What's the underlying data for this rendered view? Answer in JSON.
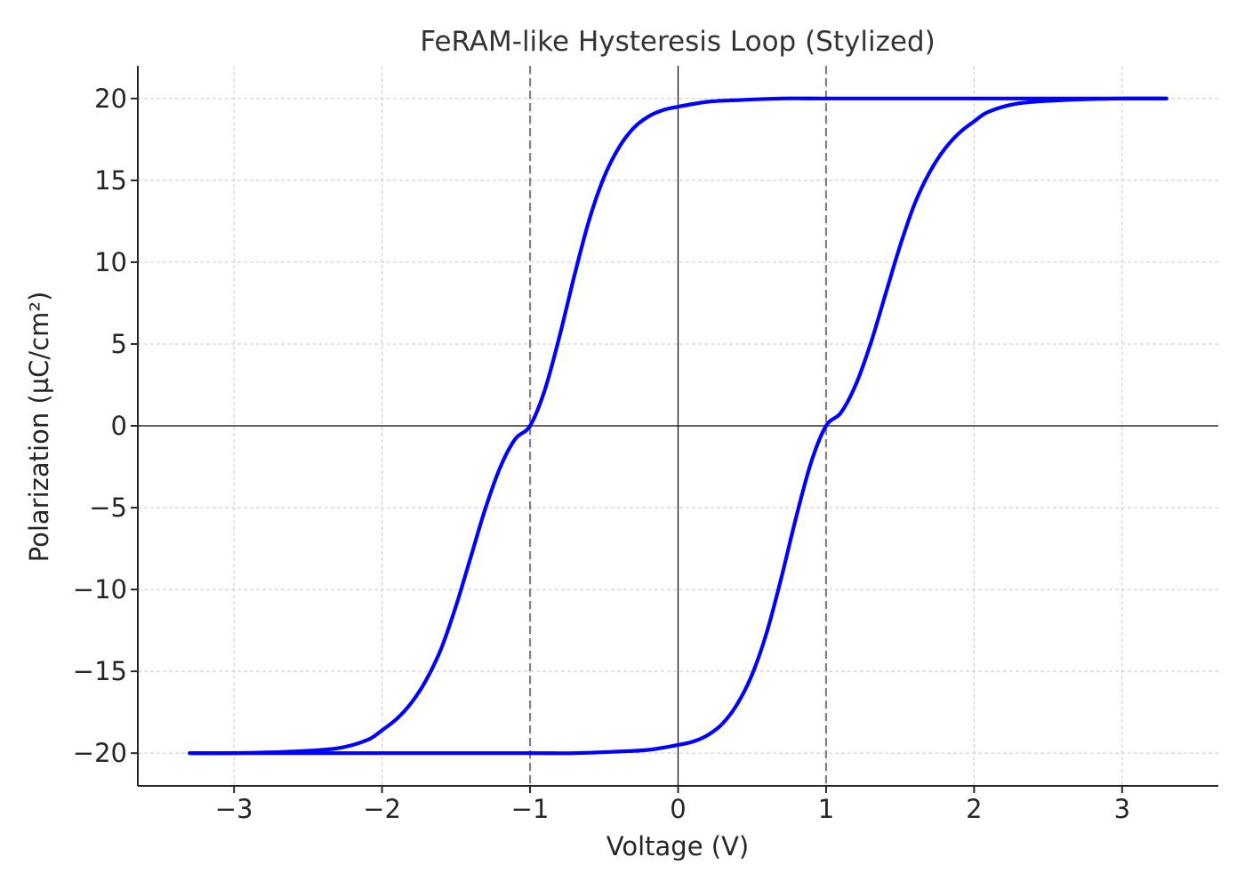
{
  "chart_data": {
    "type": "line",
    "title": "FeRAM-like Hysteresis Loop (Stylized)",
    "xlabel": "Voltage (V)",
    "ylabel": "Polarization (µC/cm²)",
    "xlim": [
      -3.65,
      3.65
    ],
    "ylim": [
      -22,
      22
    ],
    "xticks": [
      -3,
      -2,
      -1,
      0,
      1,
      2,
      3
    ],
    "yticks": [
      -20,
      -15,
      -10,
      -5,
      0,
      5,
      10,
      15,
      20
    ],
    "xtick_labels": [
      "−3",
      "−2",
      "−1",
      "0",
      "1",
      "2",
      "3"
    ],
    "ytick_labels": [
      "−20",
      "−15",
      "−10",
      "−5",
      "0",
      "5",
      "10",
      "15",
      "20"
    ],
    "grid": true,
    "coercive_voltage_lines": [
      -1,
      1
    ],
    "series": [
      {
        "color": "#0000ff",
        "x": [
          3.3,
          3.0,
          2.6,
          2.3,
          2.1,
          2.0,
          1.9,
          1.8,
          1.7,
          1.6,
          1.5,
          1.4,
          1.3,
          1.2,
          1.1,
          1.0,
          0.9,
          0.8,
          0.7,
          0.6,
          0.5,
          0.4,
          0.3,
          0.2,
          0.1,
          0.0,
          -0.2,
          -0.4,
          -0.7,
          -1.0,
          -1.5,
          -2.0,
          -2.5,
          -3.0,
          -3.3
        ],
        "y": [
          20.0,
          20.0,
          19.9,
          19.7,
          19.2,
          18.6,
          17.9,
          16.9,
          15.5,
          13.6,
          11.0,
          8.0,
          5.0,
          2.5,
          0.8,
          0.0,
          -2.2,
          -5.5,
          -9.2,
          -12.6,
          -15.2,
          -17.0,
          -18.2,
          -18.9,
          -19.3,
          -19.5,
          -19.8,
          -19.9,
          -20.0,
          -20.0,
          -20.0,
          -20.0,
          -20.0,
          -20.0,
          -20.0
        ]
      },
      {
        "color": "#0000ff",
        "x": [
          -3.3,
          -3.0,
          -2.6,
          -2.3,
          -2.1,
          -2.0,
          -1.9,
          -1.8,
          -1.7,
          -1.6,
          -1.5,
          -1.4,
          -1.3,
          -1.2,
          -1.1,
          -1.0,
          -0.9,
          -0.8,
          -0.7,
          -0.6,
          -0.5,
          -0.4,
          -0.3,
          -0.2,
          -0.1,
          0.0,
          0.2,
          0.4,
          0.7,
          1.0,
          1.5,
          2.0,
          2.5,
          3.0,
          3.3
        ],
        "y": [
          -20.0,
          -20.0,
          -19.9,
          -19.7,
          -19.2,
          -18.6,
          -17.9,
          -16.9,
          -15.5,
          -13.6,
          -11.0,
          -8.0,
          -5.0,
          -2.5,
          -0.8,
          0.0,
          2.2,
          5.5,
          9.2,
          12.6,
          15.2,
          17.0,
          18.2,
          18.9,
          19.3,
          19.5,
          19.8,
          19.9,
          20.0,
          20.0,
          20.0,
          20.0,
          20.0,
          20.0,
          20.0
        ]
      }
    ],
    "colors": {
      "line": "#0000ff",
      "grid": "#c8c8c8",
      "coercive": "#808080",
      "axes": "#000000",
      "spine": "#262626"
    }
  }
}
